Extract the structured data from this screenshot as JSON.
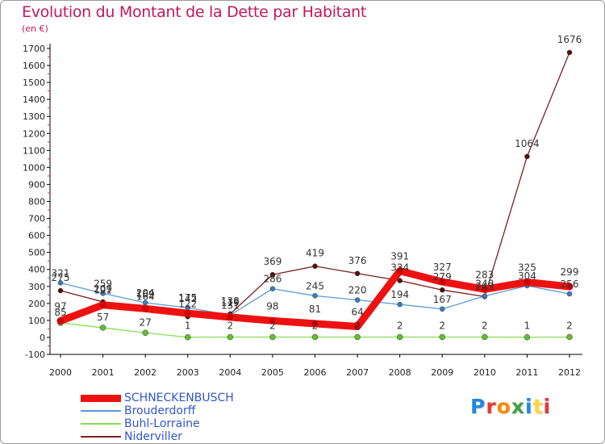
{
  "header": {
    "title": "Evolution du Montant de la Dette par Habitant",
    "subtitle": "(en €)"
  },
  "logo": {
    "text": "Proxiti",
    "colors": [
      "#1e88e5",
      "#e53935",
      "#fb8c00",
      "#43a047",
      "#1e88e5",
      "#fdd835",
      "#e53935"
    ]
  },
  "chart_data": {
    "type": "line",
    "title": "Evolution du Montant de la Dette par Habitant",
    "subtitle": "(en €)",
    "xlabel": "",
    "ylabel": "",
    "ylim": [
      -100,
      1700
    ],
    "yticks": [
      -100,
      0,
      100,
      200,
      300,
      400,
      500,
      600,
      700,
      800,
      900,
      1000,
      1100,
      1200,
      1300,
      1400,
      1500,
      1600,
      1700
    ],
    "grid": false,
    "legend_position": "bottom-left",
    "x": [
      "2000",
      "2001",
      "2002",
      "2003",
      "2004",
      "2005",
      "2006",
      "2007",
      "2008",
      "2009",
      "2010",
      "2011",
      "2012"
    ],
    "series": [
      {
        "name": "SCHNECKENBUSCH",
        "color": "#ee1111",
        "values": [
          97,
          191,
          169,
          142,
          119,
          98,
          81,
          64,
          391,
          327,
          283,
          325,
          299
        ]
      },
      {
        "name": "Brouderdorff",
        "color": "#5b9bd5",
        "values": [
          321,
          259,
          204,
          175,
          131,
          286,
          245,
          220,
          194,
          167,
          243,
          304,
          256
        ]
      },
      {
        "name": "Buhl-Lorraine",
        "color": "#88dd55",
        "values": [
          85,
          57,
          27,
          1,
          2,
          2,
          2,
          2,
          2,
          2,
          2,
          1,
          2
        ]
      },
      {
        "name": "Niderviller",
        "color": "#7a2020",
        "values": [
          275,
          209,
          164,
          122,
          138,
          369,
          419,
          376,
          334,
          279,
          240,
          1064,
          1676
        ]
      }
    ]
  }
}
